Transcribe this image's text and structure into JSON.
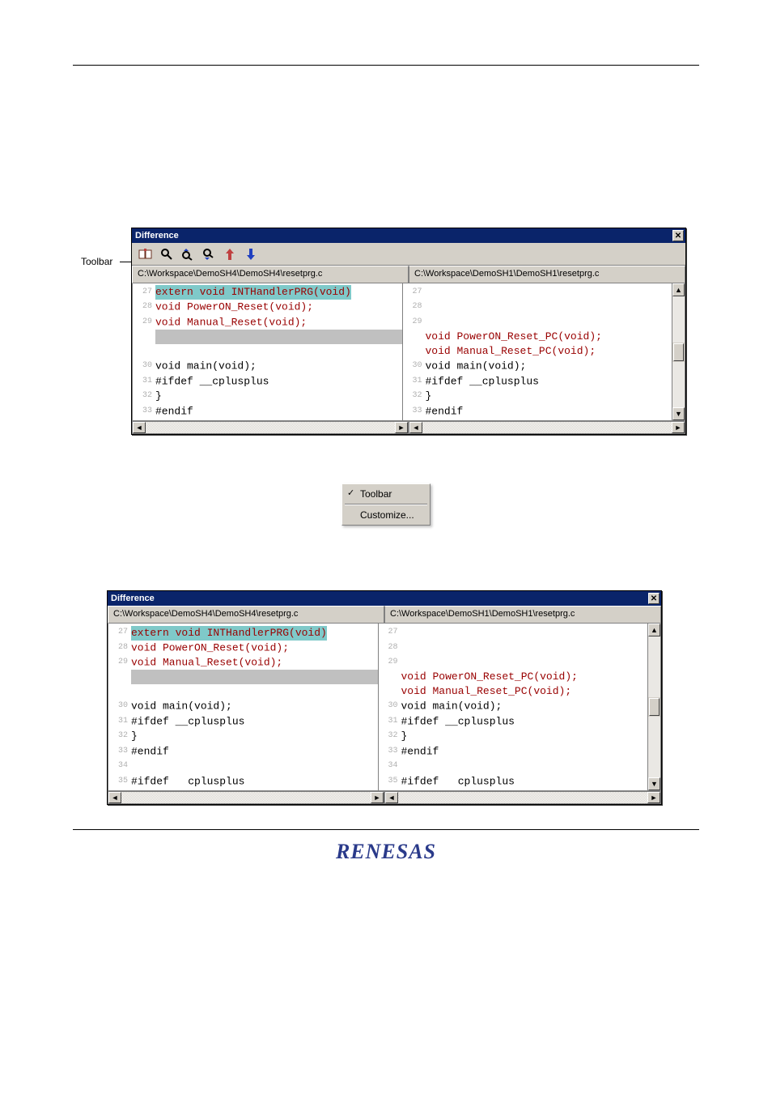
{
  "labels": {
    "toolbar": "Toolbar"
  },
  "win1": {
    "title": "Difference",
    "has_toolbar": true,
    "toolbar_icons": [
      "compare-files",
      "find",
      "find-prev",
      "find-next",
      "arrow-up",
      "arrow-down"
    ],
    "arrow_colors": {
      "up": "#c04040",
      "down": "#2040c0"
    },
    "left_path": "C:\\Workspace\\DemoSH4\\DemoSH4\\resetprg.c",
    "right_path": "C:\\Workspace\\DemoSH1\\DemoSH1\\resetprg.c",
    "left_lines": [
      {
        "n": "27",
        "cls": "kw-red",
        "txt": "extern void INTHandlerPRG(void)",
        "hl": "teal"
      },
      {
        "n": "28",
        "cls": "kw-red",
        "txt": "void PowerON_Reset(void);"
      },
      {
        "n": "29",
        "cls": "kw-red",
        "txt": "void Manual_Reset(void);"
      },
      {
        "n": "",
        "cls": "",
        "txt": " ",
        "hl": "gray"
      },
      {
        "n": "",
        "cls": "",
        "txt": " "
      },
      {
        "n": "30",
        "cls": "kw-black",
        "txt": "void main(void);"
      },
      {
        "n": "31",
        "cls": "kw-black",
        "txt": "#ifdef __cplusplus"
      },
      {
        "n": "32",
        "cls": "kw-black",
        "txt": "}"
      },
      {
        "n": "33",
        "cls": "kw-black",
        "txt": "#endif"
      }
    ],
    "right_lines": [
      {
        "n": "27",
        "cls": "",
        "txt": " "
      },
      {
        "n": "28",
        "cls": "",
        "txt": " "
      },
      {
        "n": "29",
        "cls": "",
        "txt": " "
      },
      {
        "n": "",
        "cls": "kw-red",
        "txt": "void PowerON_Reset_PC(void);"
      },
      {
        "n": "",
        "cls": "kw-red",
        "txt": "void Manual_Reset_PC(void);"
      },
      {
        "n": "30",
        "cls": "kw-black",
        "txt": "void main(void);"
      },
      {
        "n": "31",
        "cls": "kw-black",
        "txt": "#ifdef __cplusplus"
      },
      {
        "n": "32",
        "cls": "kw-black",
        "txt": "}"
      },
      {
        "n": "33",
        "cls": "kw-black",
        "txt": "#endif"
      }
    ]
  },
  "context_menu": {
    "items": [
      {
        "label": "Toolbar",
        "checked": true
      },
      {
        "label": "Customize...",
        "checked": false
      }
    ]
  },
  "win2": {
    "title": "Difference",
    "has_toolbar": false,
    "left_path": "C:\\Workspace\\DemoSH4\\DemoSH4\\resetprg.c",
    "right_path": "C:\\Workspace\\DemoSH1\\DemoSH1\\resetprg.c",
    "left_lines": [
      {
        "n": "27",
        "cls": "kw-red",
        "txt": "extern void INTHandlerPRG(void)",
        "hl": "teal"
      },
      {
        "n": "28",
        "cls": "kw-red",
        "txt": "void PowerON_Reset(void);"
      },
      {
        "n": "29",
        "cls": "kw-red",
        "txt": "void Manual_Reset(void);"
      },
      {
        "n": "",
        "cls": "",
        "txt": " ",
        "hl": "gray"
      },
      {
        "n": "",
        "cls": "",
        "txt": " "
      },
      {
        "n": "30",
        "cls": "kw-black",
        "txt": "void main(void);"
      },
      {
        "n": "31",
        "cls": "kw-black",
        "txt": "#ifdef __cplusplus"
      },
      {
        "n": "32",
        "cls": "kw-black",
        "txt": "}"
      },
      {
        "n": "33",
        "cls": "kw-black",
        "txt": "#endif"
      },
      {
        "n": "34",
        "cls": "",
        "txt": " "
      },
      {
        "n": "35",
        "cls": "kw-black",
        "txt": "#ifdef   cplusplus"
      }
    ],
    "right_lines": [
      {
        "n": "27",
        "cls": "",
        "txt": " "
      },
      {
        "n": "28",
        "cls": "",
        "txt": " "
      },
      {
        "n": "29",
        "cls": "",
        "txt": " "
      },
      {
        "n": "",
        "cls": "kw-red",
        "txt": "void PowerON_Reset_PC(void);"
      },
      {
        "n": "",
        "cls": "kw-red",
        "txt": "void Manual_Reset_PC(void);"
      },
      {
        "n": "30",
        "cls": "kw-black",
        "txt": "void main(void);"
      },
      {
        "n": "31",
        "cls": "kw-black",
        "txt": "#ifdef __cplusplus"
      },
      {
        "n": "32",
        "cls": "kw-black",
        "txt": "}"
      },
      {
        "n": "33",
        "cls": "kw-black",
        "txt": "#endif"
      },
      {
        "n": "34",
        "cls": "",
        "txt": " "
      },
      {
        "n": "35",
        "cls": "kw-black",
        "txt": "#ifdef   cplusplus"
      }
    ]
  },
  "logo": "RENESAS",
  "colors": {
    "titlebar_bg": "#0a246a",
    "control_bg": "#d4d0c8",
    "diff_red": "#990000",
    "hl_gray": "#c0c0c0",
    "hl_teal": "#7fc9c9",
    "line_no": "#b0b0b0"
  }
}
